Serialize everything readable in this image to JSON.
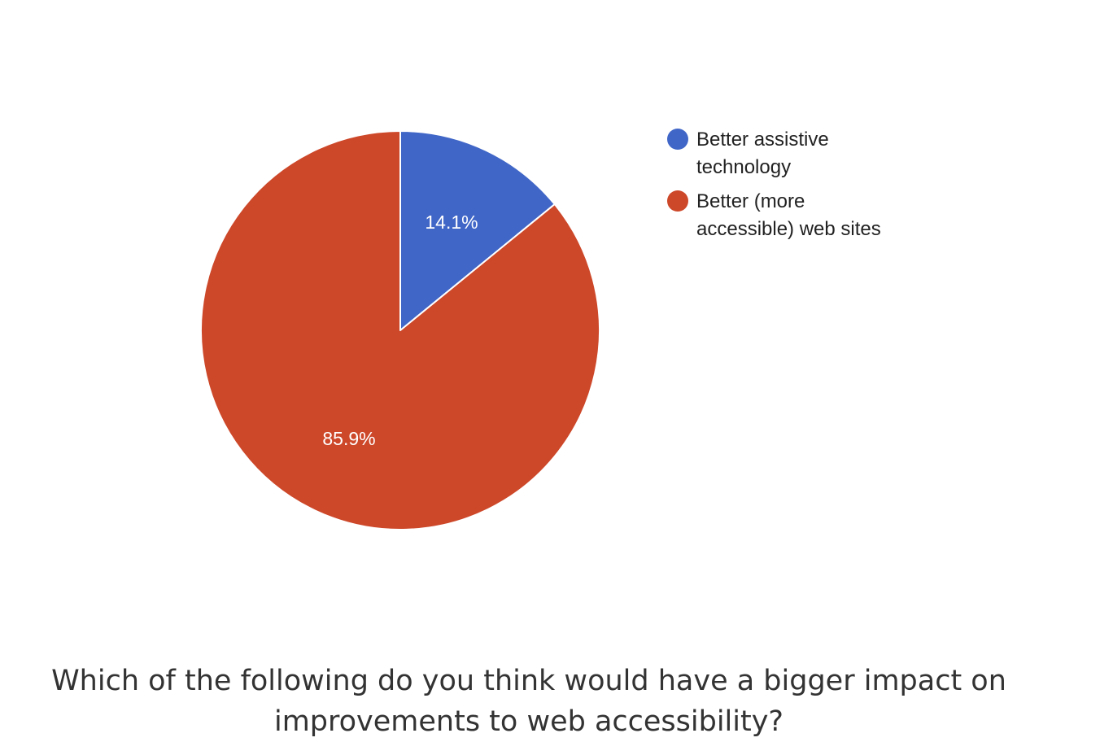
{
  "chart_data": {
    "type": "pie",
    "slices": [
      {
        "label": "Better assistive technology",
        "value": 14.1,
        "display": "14.1%",
        "color": "#4066c7"
      },
      {
        "label": "Better (more accessible) web sites",
        "value": 85.9,
        "display": "85.9%",
        "color": "#cd4729"
      }
    ],
    "legend_position": "right",
    "legend_lines": [
      [
        "Better assistive",
        "technology"
      ],
      [
        "Better (more",
        "accessible) web sites"
      ]
    ]
  },
  "caption": {
    "line1": "Which of the following do you think would have a bigger impact on",
    "line2": "improvements to web accessibility?"
  }
}
